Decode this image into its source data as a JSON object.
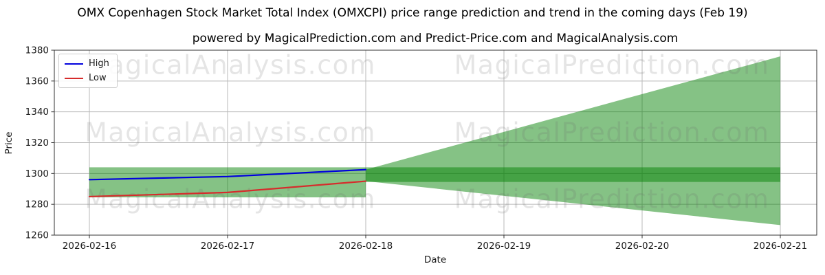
{
  "chart_data": {
    "type": "line",
    "title": "OMX Copenhagen Stock Market Total Index (OMXCPI) price range prediction and trend in the coming days (Feb 19)",
    "subtitle": "powered by MagicalPrediction.com and Predict-Price.com and MagicalAnalysis.com",
    "xlabel": "Date",
    "ylabel": "Price",
    "x_ticks": [
      "2026-02-16",
      "2026-02-17",
      "2026-02-18",
      "2026-02-19",
      "2026-02-20",
      "2026-02-21"
    ],
    "y_ticks": [
      1260,
      1280,
      1300,
      1320,
      1340,
      1360,
      1380
    ],
    "ylim": [
      1260,
      1380
    ],
    "grid": true,
    "legend_position": "upper-left",
    "series": [
      {
        "name": "High",
        "color": "#0000dd",
        "x": [
          "2026-02-16",
          "2026-02-17",
          "2026-02-18"
        ],
        "values": [
          1296,
          1298,
          1302.5
        ]
      },
      {
        "name": "Low",
        "color": "#d62c2c",
        "x": [
          "2026-02-16",
          "2026-02-17",
          "2026-02-18"
        ],
        "values": [
          1285,
          1287.7,
          1295
        ]
      }
    ],
    "bands": [
      {
        "name": "actual-range-band",
        "shape": "rect",
        "x_from": "2026-02-16",
        "x_to": "2026-02-18",
        "y_from": 1284.5,
        "y_to": 1304
      },
      {
        "name": "prediction-horizontal-band",
        "shape": "rect",
        "x_from": "2026-02-18",
        "x_to": "2026-02-21",
        "y_from": 1294.5,
        "y_to": 1304
      },
      {
        "name": "prediction-cone",
        "shape": "cone",
        "x_from": "2026-02-18",
        "x_to": "2026-02-21",
        "start_low": 1295,
        "start_high": 1302.5,
        "end_low": 1266.5,
        "end_high": 1376
      }
    ],
    "colors": {
      "band_fill": "rgba(0,128,0,0.48)",
      "grid": "#b9b9b9",
      "spine": "#333333",
      "tick_text": "#1a1a1a",
      "watermark": "#6a6a6a"
    },
    "watermarks": [
      "MagicalAnalysis.com",
      "MagicalPrediction.com"
    ]
  }
}
